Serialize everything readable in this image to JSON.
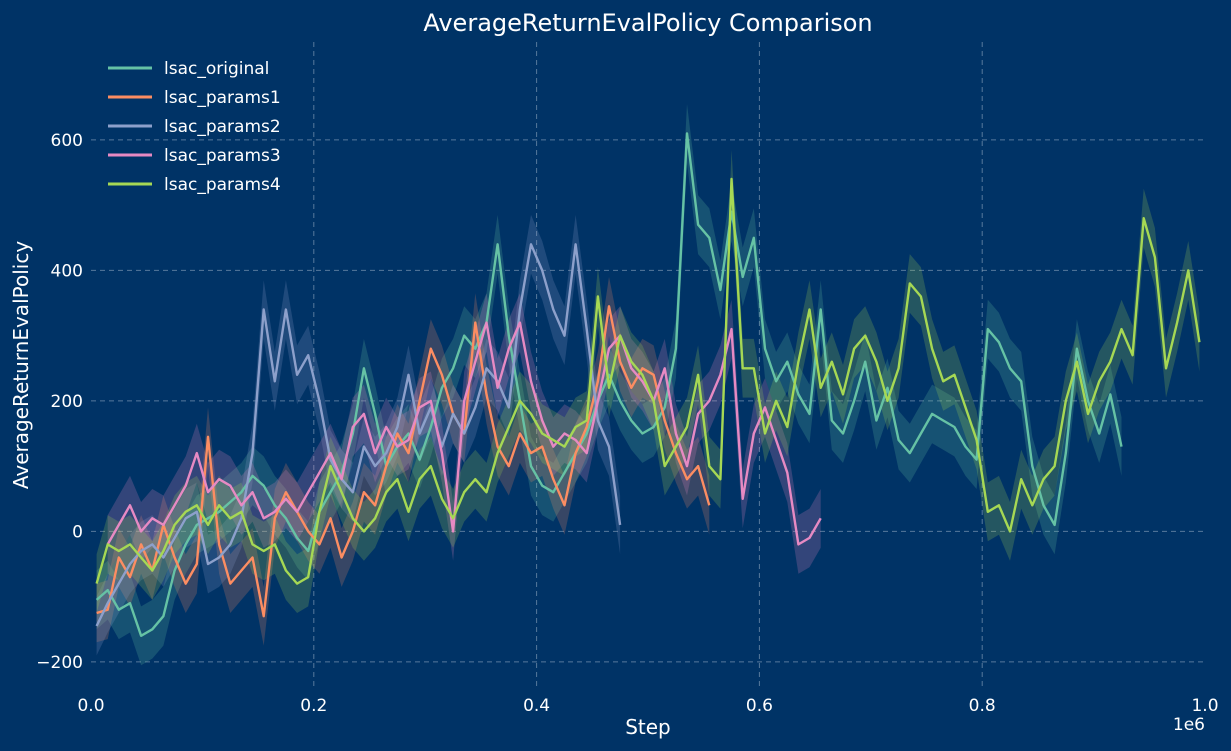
{
  "chart_data": {
    "type": "line",
    "title": "AverageReturnEvalPolicy Comparison",
    "xlabel": "Step",
    "ylabel": "AverageReturnEvalPolicy",
    "x_multiplier_label": "1e6",
    "xlim": [
      0,
      1.0
    ],
    "ylim": [
      -240,
      750
    ],
    "x_ticks": [
      0.0,
      0.2,
      0.4,
      0.6,
      0.8,
      1.0
    ],
    "x_tick_labels": [
      "0.0",
      "0.2",
      "0.4",
      "0.6",
      "0.8",
      "1.0"
    ],
    "y_ticks": [
      -200,
      0,
      200,
      400,
      600
    ],
    "y_tick_labels": [
      "−200",
      "0",
      "200",
      "400",
      "600"
    ],
    "grid": true,
    "legend_position": "top-left",
    "band_halfwidth": 45,
    "series": [
      {
        "name": "lsac_original",
        "color": "#66c2a5",
        "x": [
          0.005,
          0.015,
          0.025,
          0.035,
          0.045,
          0.055,
          0.065,
          0.075,
          0.085,
          0.095,
          0.105,
          0.115,
          0.125,
          0.135,
          0.145,
          0.155,
          0.165,
          0.175,
          0.185,
          0.195,
          0.205,
          0.215,
          0.225,
          0.235,
          0.245,
          0.255,
          0.265,
          0.275,
          0.285,
          0.295,
          0.305,
          0.315,
          0.325,
          0.335,
          0.345,
          0.355,
          0.365,
          0.375,
          0.385,
          0.395,
          0.405,
          0.415,
          0.425,
          0.435,
          0.445,
          0.455,
          0.465,
          0.475,
          0.485,
          0.495,
          0.505,
          0.515,
          0.525,
          0.535,
          0.545,
          0.555,
          0.565,
          0.575,
          0.585,
          0.595,
          0.605,
          0.615,
          0.625,
          0.635,
          0.645,
          0.655,
          0.665,
          0.675,
          0.685,
          0.695,
          0.705,
          0.715,
          0.725,
          0.735,
          0.745,
          0.755,
          0.765,
          0.775,
          0.785,
          0.795,
          0.805,
          0.815,
          0.825,
          0.835,
          0.845,
          0.855,
          0.865,
          0.875,
          0.885,
          0.895,
          0.905,
          0.915,
          0.925
        ],
        "y": [
          -105,
          -90,
          -120,
          -110,
          -160,
          -150,
          -130,
          -60,
          -20,
          10,
          20,
          30,
          45,
          60,
          85,
          70,
          40,
          20,
          -10,
          -30,
          30,
          60,
          90,
          150,
          250,
          180,
          100,
          130,
          150,
          110,
          160,
          220,
          250,
          300,
          280,
          320,
          440,
          300,
          200,
          100,
          70,
          60,
          90,
          120,
          150,
          200,
          240,
          200,
          170,
          150,
          160,
          190,
          280,
          610,
          470,
          450,
          370,
          490,
          390,
          450,
          280,
          230,
          260,
          210,
          180,
          340,
          170,
          150,
          200,
          260,
          170,
          220,
          140,
          120,
          150,
          180,
          170,
          160,
          130,
          110,
          310,
          290,
          250,
          230,
          100,
          40,
          10,
          120,
          280,
          200,
          150,
          210,
          130
        ]
      },
      {
        "name": "lsac_params1",
        "color": "#fc8d62",
        "x": [
          0.005,
          0.015,
          0.025,
          0.035,
          0.045,
          0.055,
          0.065,
          0.075,
          0.085,
          0.095,
          0.105,
          0.115,
          0.125,
          0.135,
          0.145,
          0.155,
          0.165,
          0.175,
          0.185,
          0.195,
          0.205,
          0.215,
          0.225,
          0.235,
          0.245,
          0.255,
          0.265,
          0.275,
          0.285,
          0.295,
          0.305,
          0.315,
          0.325,
          0.335,
          0.345,
          0.355,
          0.365,
          0.375,
          0.385,
          0.395,
          0.405,
          0.415,
          0.425,
          0.435,
          0.445,
          0.455,
          0.465,
          0.475,
          0.485,
          0.495,
          0.505,
          0.515,
          0.525,
          0.535,
          0.545,
          0.555
        ],
        "y": [
          -125,
          -120,
          -40,
          -70,
          -20,
          -60,
          10,
          -40,
          -80,
          -50,
          145,
          -20,
          -80,
          -60,
          -40,
          -130,
          20,
          60,
          30,
          0,
          -20,
          20,
          -40,
          0,
          60,
          40,
          100,
          150,
          120,
          200,
          280,
          240,
          180,
          150,
          320,
          210,
          130,
          100,
          150,
          120,
          130,
          80,
          40,
          120,
          160,
          230,
          345,
          260,
          220,
          250,
          240,
          170,
          120,
          80,
          100,
          40
        ]
      },
      {
        "name": "lsac_params2",
        "color": "#8da0cb",
        "x": [
          0.005,
          0.015,
          0.025,
          0.035,
          0.045,
          0.055,
          0.065,
          0.075,
          0.085,
          0.095,
          0.105,
          0.115,
          0.125,
          0.135,
          0.145,
          0.155,
          0.165,
          0.175,
          0.185,
          0.195,
          0.205,
          0.215,
          0.225,
          0.235,
          0.245,
          0.255,
          0.265,
          0.275,
          0.285,
          0.295,
          0.305,
          0.315,
          0.325,
          0.335,
          0.345,
          0.355,
          0.365,
          0.375,
          0.385,
          0.395,
          0.405,
          0.415,
          0.425,
          0.435,
          0.445,
          0.455,
          0.465,
          0.475
        ],
        "y": [
          -145,
          -110,
          -80,
          -50,
          -30,
          -20,
          -40,
          -10,
          20,
          30,
          -50,
          -40,
          -20,
          20,
          120,
          340,
          230,
          340,
          240,
          270,
          200,
          110,
          80,
          60,
          130,
          100,
          120,
          160,
          240,
          150,
          190,
          130,
          180,
          150,
          190,
          250,
          230,
          190,
          340,
          440,
          400,
          340,
          300,
          440,
          310,
          170,
          130,
          10
        ]
      },
      {
        "name": "lsac_params3",
        "color": "#e78ac3",
        "x": [
          0.015,
          0.025,
          0.035,
          0.045,
          0.055,
          0.065,
          0.075,
          0.085,
          0.095,
          0.105,
          0.115,
          0.125,
          0.135,
          0.145,
          0.155,
          0.165,
          0.175,
          0.185,
          0.195,
          0.205,
          0.215,
          0.225,
          0.235,
          0.245,
          0.255,
          0.265,
          0.275,
          0.285,
          0.295,
          0.305,
          0.315,
          0.325,
          0.335,
          0.345,
          0.355,
          0.365,
          0.375,
          0.385,
          0.395,
          0.405,
          0.415,
          0.425,
          0.435,
          0.445,
          0.455,
          0.465,
          0.475,
          0.485,
          0.495,
          0.505,
          0.515,
          0.525,
          0.535,
          0.545,
          0.555,
          0.565,
          0.575,
          0.585,
          0.595,
          0.605,
          0.615,
          0.625,
          0.635,
          0.645,
          0.655
        ],
        "y": [
          -20,
          10,
          40,
          0,
          20,
          10,
          40,
          70,
          120,
          60,
          80,
          70,
          40,
          60,
          20,
          30,
          50,
          30,
          60,
          90,
          120,
          80,
          160,
          180,
          120,
          160,
          130,
          140,
          190,
          200,
          120,
          0,
          200,
          260,
          320,
          220,
          280,
          320,
          230,
          170,
          130,
          150,
          140,
          120,
          200,
          280,
          300,
          250,
          230,
          200,
          250,
          150,
          100,
          180,
          200,
          240,
          310,
          50,
          150,
          190,
          140,
          90,
          -20,
          -10,
          20
        ]
      },
      {
        "name": "lsac_params4",
        "color": "#a6d854",
        "x": [
          0.005,
          0.015,
          0.025,
          0.035,
          0.045,
          0.055,
          0.065,
          0.075,
          0.085,
          0.095,
          0.105,
          0.115,
          0.125,
          0.135,
          0.145,
          0.155,
          0.165,
          0.175,
          0.185,
          0.195,
          0.205,
          0.215,
          0.225,
          0.235,
          0.245,
          0.255,
          0.265,
          0.275,
          0.285,
          0.295,
          0.305,
          0.315,
          0.325,
          0.335,
          0.345,
          0.355,
          0.365,
          0.375,
          0.385,
          0.395,
          0.405,
          0.415,
          0.425,
          0.435,
          0.445,
          0.455,
          0.465,
          0.475,
          0.485,
          0.495,
          0.505,
          0.515,
          0.525,
          0.535,
          0.545,
          0.555,
          0.565,
          0.575,
          0.585,
          0.595,
          0.605,
          0.615,
          0.625,
          0.635,
          0.645,
          0.655,
          0.665,
          0.675,
          0.685,
          0.695,
          0.705,
          0.715,
          0.725,
          0.735,
          0.745,
          0.755,
          0.765,
          0.775,
          0.785,
          0.795,
          0.805,
          0.815,
          0.825,
          0.835,
          0.845,
          0.855,
          0.865,
          0.875,
          0.885,
          0.895,
          0.905,
          0.915,
          0.925,
          0.935,
          0.945,
          0.955,
          0.965,
          0.975,
          0.985,
          0.995
        ],
        "y": [
          -80,
          -20,
          -30,
          -20,
          -40,
          -60,
          -30,
          10,
          30,
          40,
          10,
          40,
          20,
          30,
          -20,
          -30,
          -20,
          -60,
          -80,
          -70,
          30,
          100,
          60,
          20,
          0,
          20,
          60,
          80,
          30,
          80,
          100,
          50,
          20,
          60,
          80,
          60,
          120,
          160,
          200,
          180,
          150,
          140,
          130,
          160,
          170,
          360,
          220,
          300,
          260,
          240,
          200,
          100,
          130,
          160,
          240,
          100,
          80,
          540,
          250,
          250,
          150,
          200,
          160,
          260,
          340,
          220,
          260,
          210,
          280,
          300,
          260,
          200,
          250,
          380,
          360,
          280,
          230,
          240,
          190,
          140,
          30,
          40,
          0,
          80,
          40,
          80,
          100,
          200,
          260,
          180,
          230,
          260,
          310,
          270,
          480,
          420,
          250,
          320,
          400,
          290
        ]
      }
    ]
  }
}
